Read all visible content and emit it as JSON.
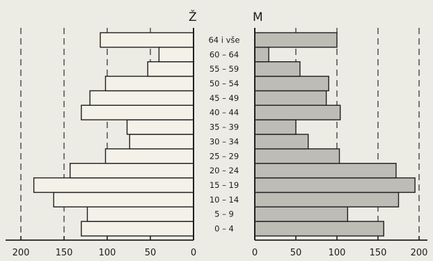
{
  "chart_data": {
    "type": "bar",
    "orientation": "horizontal",
    "style": "population-pyramid",
    "categories": [
      "0 – 4",
      "5 – 9",
      "10 – 14",
      "15 – 19",
      "20 – 24",
      "25 – 29",
      "30 – 34",
      "35 – 39",
      "40 – 44",
      "45 – 49",
      "50 – 54",
      "55 – 59",
      "60 – 64",
      "64 i vše"
    ],
    "series": [
      {
        "name": "Ž",
        "side": "left",
        "fill": "#f3f1e8",
        "values": [
          130,
          123,
          162,
          185,
          143,
          102,
          74,
          77,
          130,
          120,
          102,
          53,
          40,
          108
        ]
      },
      {
        "name": "M",
        "side": "right",
        "fill": "#bdbdb6",
        "values": [
          157,
          113,
          175,
          195,
          172,
          103,
          65,
          50,
          104,
          87,
          90,
          55,
          17,
          100
        ]
      }
    ],
    "left_ticks": [
      "200",
      "150",
      "100",
      "50",
      "0"
    ],
    "right_ticks": [
      "0",
      "50",
      "100",
      "150",
      "200"
    ],
    "xlim": [
      0,
      200
    ],
    "gridlines": "dashed-vertical"
  }
}
